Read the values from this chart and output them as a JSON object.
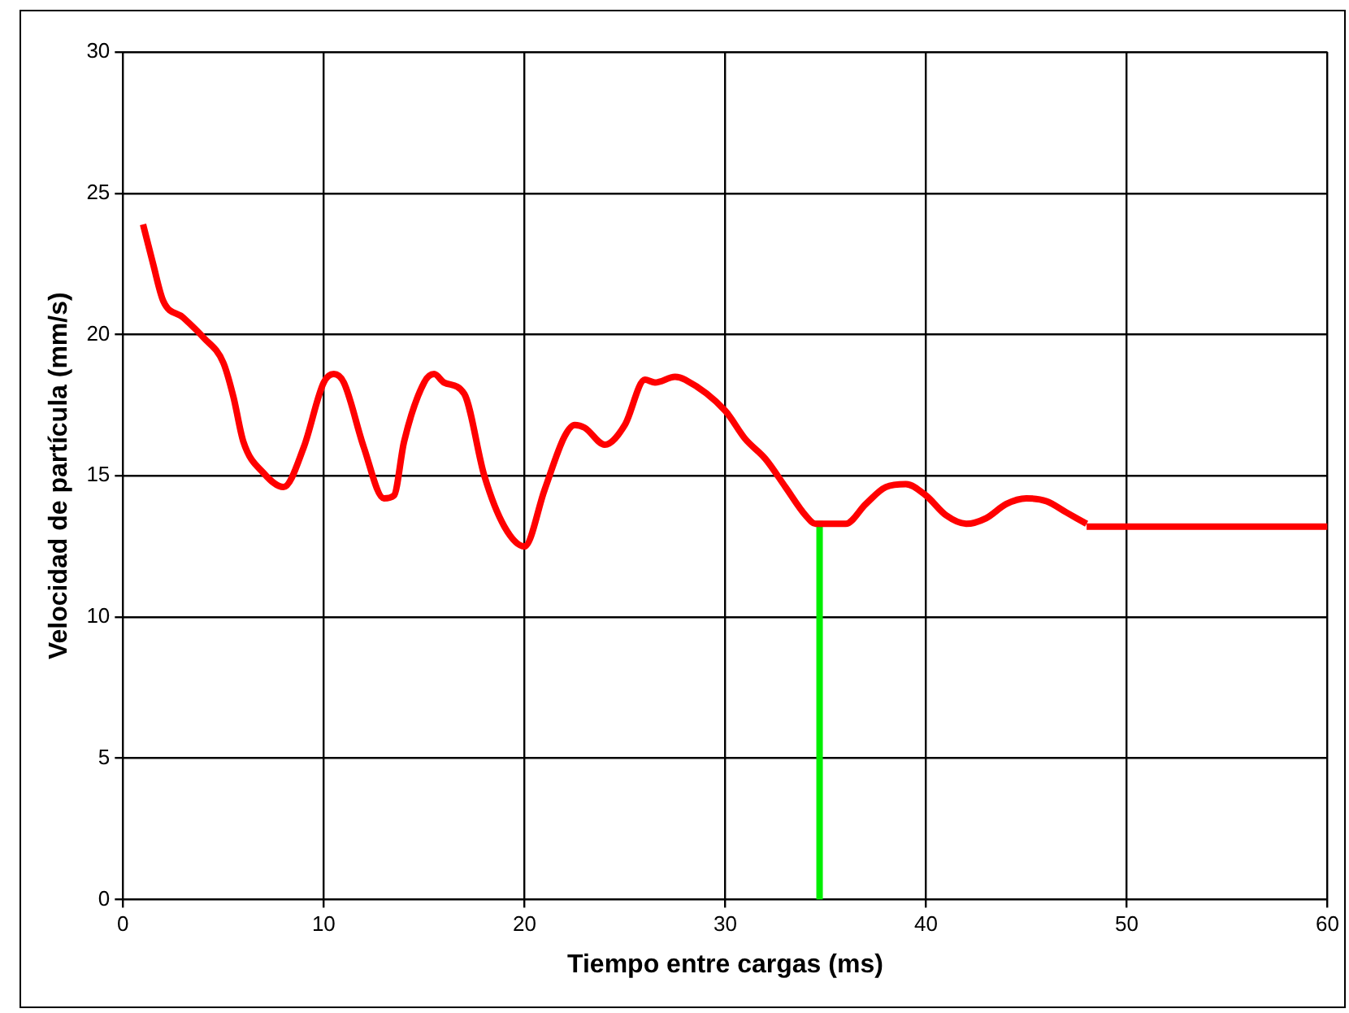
{
  "chart_data": {
    "type": "line",
    "xlabel": "Tiempo entre cargas (ms)",
    "ylabel": "Velocidad de partícula (mm/s)",
    "xlim": [
      0,
      60
    ],
    "xticks": [
      0,
      10,
      20,
      30,
      40,
      50,
      60
    ],
    "ylim": [
      0,
      30
    ],
    "yticks": [
      0,
      5,
      10,
      15,
      20,
      25,
      30
    ],
    "grid": true,
    "legend": false,
    "marker": "none",
    "line_style": "solid",
    "series": [
      {
        "color": "#ff0000",
        "x": [
          1,
          1.5,
          2,
          3,
          4,
          5,
          5.5,
          6,
          7,
          8,
          9,
          10,
          10.5,
          11,
          12,
          13,
          13.5,
          14,
          15,
          15.5,
          16,
          17,
          18,
          19,
          20,
          21,
          22,
          22.5,
          23,
          24,
          25,
          26,
          26.5,
          27.5,
          28,
          30,
          31,
          32,
          33,
          34,
          34.5,
          35,
          36,
          37,
          38,
          39,
          40,
          41,
          42,
          43,
          44,
          45,
          46,
          47,
          48
        ],
        "values": [
          23.9,
          22.5,
          21.2,
          20.6,
          19.9,
          19.0,
          17.8,
          16.2,
          15.1,
          14.6,
          16.0,
          18.3,
          18.6,
          18.3,
          16.0,
          14.2,
          14.3,
          16.2,
          18.3,
          18.6,
          18.3,
          17.9,
          15.0,
          13.2,
          12.5,
          14.5,
          16.4,
          16.8,
          16.7,
          16.1,
          16.8,
          18.4,
          18.3,
          18.5,
          18.4,
          17.3,
          16.3,
          15.6,
          14.6,
          13.6,
          13.3,
          13.3,
          13.3,
          14.0,
          14.6,
          14.7,
          14.3,
          13.6,
          13.3,
          13.5,
          14.0,
          14.2,
          14.1,
          13.7,
          13.3
        ]
      },
      {
        "color": "#ff0000",
        "x": [
          48,
          60
        ],
        "values": [
          13.2,
          13.2
        ]
      },
      {
        "color": "#00ee00",
        "x": [
          34.7,
          34.7
        ],
        "values": [
          0,
          13.4
        ]
      }
    ]
  }
}
